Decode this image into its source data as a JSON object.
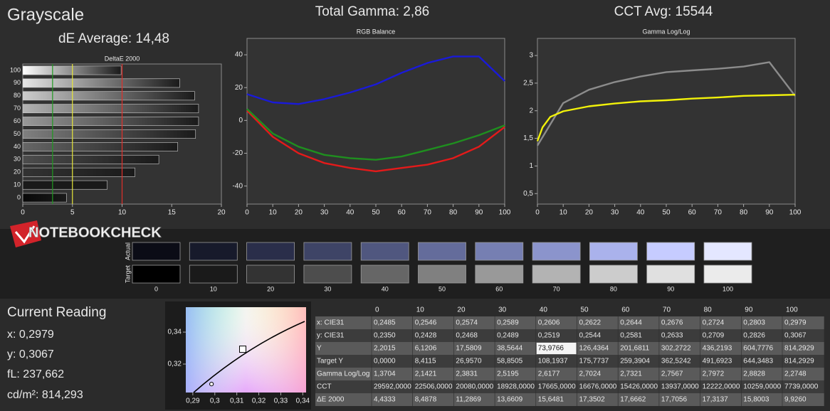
{
  "header": {
    "title": "Grayscale",
    "de_average": "dE Average: 14,48",
    "total_gamma": "Total Gamma: 2,86",
    "cct_avg": "CCT Avg: 15544",
    "logo": "NOTEBOOKCHECK"
  },
  "chart_data": [
    {
      "type": "hbar",
      "title": "DeltaE 2000",
      "categories": [
        "100",
        "90",
        "80",
        "70",
        "60",
        "50",
        "40",
        "30",
        "20",
        "10",
        "0"
      ],
      "values": [
        9.9,
        15.8,
        17.3,
        17.7,
        17.7,
        17.4,
        15.6,
        13.7,
        11.3,
        8.5,
        4.4
      ],
      "colors": [
        "#ffffff",
        "#e6e6e6",
        "#cccccc",
        "#b3b3b3",
        "#999999",
        "#808080",
        "#666666",
        "#4d4d4d",
        "#333333",
        "#1a1a1a",
        "#080808"
      ],
      "xlim": [
        0,
        20
      ],
      "xticks": [
        0,
        5,
        10,
        15,
        20
      ],
      "reference_lines": [
        {
          "value": 3,
          "color": "#1f9a1f"
        },
        {
          "value": 5,
          "color": "#e6e63a"
        },
        {
          "value": 10,
          "color": "#e0302a"
        }
      ]
    },
    {
      "type": "line",
      "title": "RGB Balance",
      "x": [
        0,
        10,
        20,
        30,
        40,
        50,
        60,
        70,
        80,
        90,
        100
      ],
      "series": [
        {
          "color": "#e41a1a",
          "values": [
            6,
            -10,
            -20,
            -26,
            -29,
            -31,
            -29,
            -27,
            -23,
            -16,
            -4
          ]
        },
        {
          "color": "#1f8f1f",
          "values": [
            7,
            -8,
            -16,
            -21,
            -23,
            -24,
            -22,
            -18,
            -14,
            -9,
            -3
          ]
        },
        {
          "color": "#1a1ad8",
          "values": [
            16,
            11,
            10,
            13,
            17,
            22,
            29,
            35,
            39,
            39,
            24
          ]
        }
      ],
      "xlim": [
        0,
        100
      ],
      "xticks": [
        0,
        10,
        20,
        30,
        40,
        50,
        60,
        70,
        80,
        90,
        100
      ],
      "ylim": [
        -51,
        50
      ],
      "yticks": [
        -40,
        -20,
        0,
        20,
        40
      ]
    },
    {
      "type": "line",
      "title": "Gamma Log/Log",
      "series": [
        {
          "color": "#8c8c8c",
          "x": [
            0,
            10,
            20,
            30,
            40,
            50,
            60,
            70,
            80,
            90,
            100
          ],
          "values": [
            1.37,
            2.14,
            2.38,
            2.52,
            2.62,
            2.7,
            2.73,
            2.76,
            2.8,
            2.88,
            2.27
          ]
        },
        {
          "color": "#f2f20a",
          "x": [
            0,
            2,
            5,
            10,
            20,
            30,
            40,
            50,
            60,
            70,
            80,
            90,
            100
          ],
          "values": [
            1.45,
            1.7,
            1.89,
            1.99,
            2.08,
            2.13,
            2.17,
            2.19,
            2.22,
            2.24,
            2.27,
            2.28,
            2.29
          ]
        }
      ],
      "xlim": [
        0,
        100
      ],
      "xticks": [
        0,
        10,
        20,
        30,
        40,
        50,
        60,
        70,
        80,
        90,
        100
      ],
      "ylim": [
        0.31,
        3.31
      ],
      "yticks": [
        {
          "value": 0.5,
          "label": "0,5"
        },
        1,
        {
          "value": 1.5,
          "label": "1,5"
        },
        2,
        {
          "value": 2.5,
          "label": "2,5"
        },
        3
      ]
    },
    {
      "type": "scatter",
      "series": [
        {
          "shape": "square",
          "x": [
            0.3127
          ],
          "values": [
            0.3293
          ]
        },
        {
          "shape": "circle",
          "x": [
            0.2985
          ],
          "values": [
            0.3075
          ]
        }
      ],
      "xlim": [
        0.2868,
        0.3415
      ],
      "ylim": [
        0.3022,
        0.3556
      ],
      "xticks": [
        {
          "value": 0.29,
          "label": "0,29"
        },
        {
          "value": 0.3,
          "label": "0,3"
        },
        {
          "value": 0.31,
          "label": "0,31"
        },
        {
          "value": 0.32,
          "label": "0,32"
        },
        {
          "value": 0.33,
          "label": "0,33"
        },
        {
          "value": 0.34,
          "label": "0,34"
        }
      ],
      "yticks": [
        {
          "value": 0.32,
          "label": "0,32"
        },
        {
          "value": 0.34,
          "label": "0,34"
        }
      ]
    }
  ],
  "patches": {
    "row_labels": [
      "Actual",
      "Target"
    ],
    "levels": [
      "0",
      "10",
      "20",
      "30",
      "40",
      "50",
      "60",
      "70",
      "80",
      "90",
      "100"
    ],
    "actual": [
      "#0b0c16",
      "#171a2b",
      "#2a2e4a",
      "#3e4466",
      "#50577f",
      "#646c9b",
      "#767fb2",
      "#8b94cc",
      "#aab2ec",
      "#c6ccff",
      "#e4e7ff"
    ],
    "target": [
      "#000000",
      "#1a1a1a",
      "#333333",
      "#4d4d4d",
      "#666666",
      "#808080",
      "#999999",
      "#b3b3b3",
      "#cccccc",
      "#e0e0e0",
      "#ebebeb"
    ]
  },
  "readings": {
    "title": "Current Reading",
    "lines": [
      "x: 0,2979",
      "y: 0,3067",
      "fL: 237,662",
      "cd/m²: 814,293"
    ]
  },
  "table": {
    "header": [
      "0",
      "10",
      "20",
      "30",
      "40",
      "50",
      "60",
      "70",
      "80",
      "90",
      "100"
    ],
    "rows": [
      [
        "x: CIE31",
        "0,2485",
        "0,2546",
        "0,2574",
        "0,2589",
        "0,2606",
        "0,2622",
        "0,2644",
        "0,2676",
        "0,2724",
        "0,2803",
        "0,2979"
      ],
      [
        "y: CIE31",
        "0,2350",
        "0,2428",
        "0,2468",
        "0,2489",
        "0,2519",
        "0,2544",
        "0,2581",
        "0,2633",
        "0,2709",
        "0,2826",
        "0,3067"
      ],
      [
        "Y",
        "2,2015",
        "6,1206",
        "17,5809",
        "38,5644",
        "73,9766",
        "126,4364",
        "201,6811",
        "302,2722",
        "436,2193",
        "604,7776",
        "814,2929"
      ],
      [
        "Target Y",
        "0,0000",
        "8,4115",
        "26,9570",
        "58,8505",
        "108,1937",
        "175,7737",
        "259,3904",
        "362,5242",
        "491,6923",
        "644,3483",
        "814,2929"
      ],
      [
        "Gamma Log/Log",
        "1,3704",
        "2,1421",
        "2,3831",
        "2,5195",
        "2,6177",
        "2,7024",
        "2,7321",
        "2,7567",
        "2,7972",
        "2,8828",
        "2,2748"
      ],
      [
        "CCT",
        "29592,0000",
        "22506,0000",
        "20080,0000",
        "18928,0000",
        "17665,0000",
        "16676,0000",
        "15426,0000",
        "13937,0000",
        "12222,0000",
        "10259,0000",
        "7739,0000"
      ],
      [
        "ΔE 2000",
        "4,4333",
        "8,4878",
        "11,2869",
        "13,6609",
        "15,6481",
        "17,3502",
        "17,6662",
        "17,7056",
        "17,3137",
        "15,8003",
        "9,9260"
      ]
    ],
    "highlight": [
      2,
      5
    ]
  }
}
